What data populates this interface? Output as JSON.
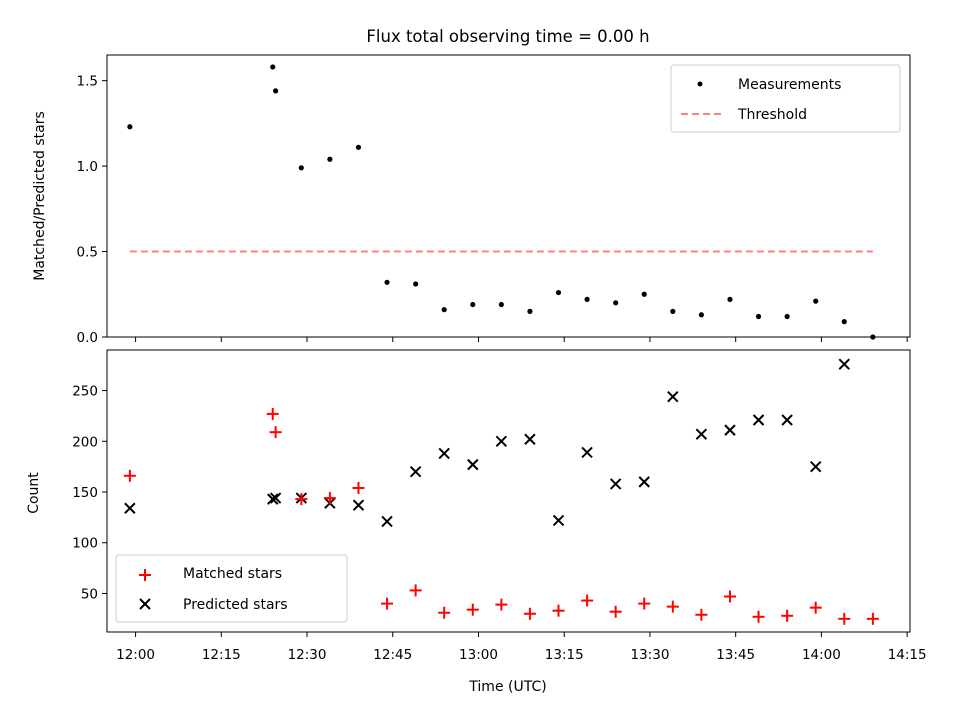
{
  "chart_data": [
    {
      "type": "scatter",
      "title": "Flux total observing time = 0.00 h",
      "ylabel": "Matched/Predicted stars",
      "xlabel": "",
      "ylim": [
        0,
        1.65
      ],
      "yticks": [
        "0.0",
        "0.5",
        "1.0",
        "1.5"
      ],
      "legend_position": "top-right",
      "series": [
        {
          "name": "Measurements",
          "color": "#000000",
          "marker": "dot",
          "x": [
            "11:59",
            "12:24",
            "12:24:30",
            "12:29",
            "12:34",
            "12:39",
            "12:44",
            "12:49",
            "12:54",
            "12:59",
            "13:04",
            "13:09",
            "13:14",
            "13:19",
            "13:24",
            "13:29",
            "13:34",
            "13:39",
            "13:44",
            "13:49",
            "13:54",
            "13:59",
            "14:04",
            "14:09"
          ],
          "y": [
            1.23,
            1.58,
            1.44,
            0.99,
            1.04,
            1.11,
            0.32,
            0.31,
            0.16,
            0.19,
            0.19,
            0.15,
            0.26,
            0.22,
            0.2,
            0.25,
            0.15,
            0.13,
            0.22,
            0.12,
            0.12,
            0.21,
            0.09,
            0.0
          ]
        },
        {
          "name": "Threshold",
          "color": "#ff8080",
          "style": "dashed-line",
          "x": [
            "11:59",
            "14:09"
          ],
          "y": [
            0.5,
            0.5
          ]
        }
      ]
    },
    {
      "type": "scatter",
      "title": "",
      "ylabel": "Count",
      "xlabel": "Time (UTC)",
      "xlim": [
        "11:55",
        "14:15:30"
      ],
      "xticks": [
        "12:00",
        "12:15",
        "12:30",
        "12:45",
        "13:00",
        "13:15",
        "13:30",
        "13:45",
        "14:00",
        "14:15"
      ],
      "ylim": [
        12,
        290
      ],
      "yticks": [
        "50",
        "100",
        "150",
        "200",
        "250"
      ],
      "legend_position": "bottom-left",
      "series": [
        {
          "name": "Matched stars",
          "color": "#ff0000",
          "marker": "plus",
          "x": [
            "11:59",
            "12:24",
            "12:24:30",
            "12:29",
            "12:34",
            "12:39",
            "12:44",
            "12:49",
            "12:54",
            "12:59",
            "13:04",
            "13:09",
            "13:14",
            "13:19",
            "13:24",
            "13:29",
            "13:34",
            "13:39",
            "13:44",
            "13:49",
            "13:54",
            "13:59",
            "14:04",
            "14:09"
          ],
          "y": [
            166,
            227,
            209,
            143,
            144,
            154,
            40,
            53,
            31,
            34,
            39,
            30,
            33,
            43,
            32,
            40,
            37,
            29,
            47,
            27,
            28,
            36,
            25,
            25
          ]
        },
        {
          "name": "Predicted stars",
          "color": "#000000",
          "marker": "x",
          "x": [
            "11:59",
            "12:24",
            "12:24:30",
            "12:29",
            "12:34",
            "12:39",
            "12:44",
            "12:49",
            "12:54",
            "12:59",
            "13:04",
            "13:09",
            "13:14",
            "13:19",
            "13:24",
            "13:29",
            "13:34",
            "13:39",
            "13:44",
            "13:49",
            "13:54",
            "13:59",
            "14:04"
          ],
          "y": [
            134,
            143,
            144,
            144,
            139,
            137,
            121,
            170,
            188,
            177,
            200,
            202,
            122,
            189,
            158,
            160,
            244,
            207,
            211,
            221,
            221,
            175,
            276
          ]
        }
      ]
    }
  ]
}
